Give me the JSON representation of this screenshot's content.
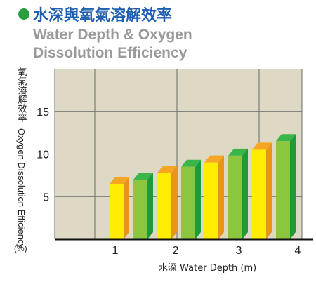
{
  "header": {
    "title_zh": "水深與氧氣溶解效率",
    "subtitle_line1": "Water Depth & Oxygen",
    "subtitle_line2": "Dissolution Efficiency"
  },
  "colors": {
    "accent_green": "#2a9d3e",
    "title_blue": "#1f5fb0",
    "subtitle_gray": "#9a9a9a",
    "plot_bg": "#ddd9c4",
    "grid": "#6a6a6a",
    "bar_yellow": "#ffec00",
    "bar_orange": "#e8941a",
    "bar_light_green": "#8cc63f",
    "bar_dark_green": "#1e9a3a"
  },
  "icons": {
    "title_marker": "green-dot-icon"
  },
  "chart_data": {
    "type": "bar",
    "categories": [
      "1",
      "2",
      "3",
      "4"
    ],
    "series": [
      {
        "values": [
          6.5,
          7.8,
          9.0,
          10.5
        ]
      },
      {
        "values": [
          7.0,
          8.5,
          9.8,
          11.5
        ]
      }
    ],
    "yticks": [
      "5",
      "10",
      "15"
    ],
    "ylim": [
      0,
      20
    ],
    "ylabel_zh": "氧氣溶解效率",
    "ylabel_en": "Oxygen Dissolution Efficiency",
    "ylabel_unit": "(%)",
    "xlabel": "水深  Water Depth (m)",
    "grid": true,
    "style": "3d-bars"
  }
}
